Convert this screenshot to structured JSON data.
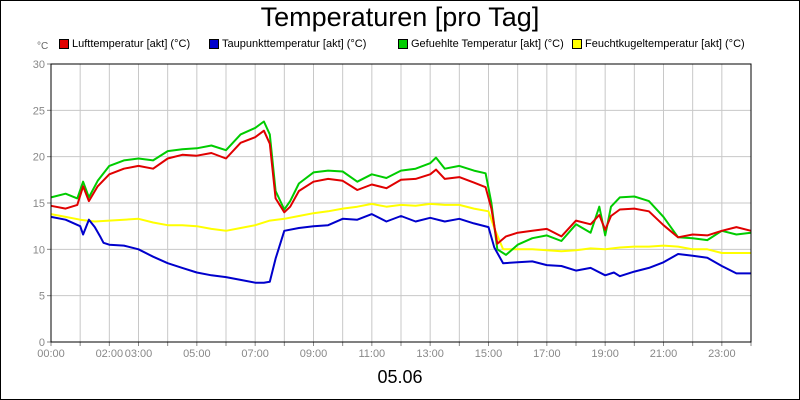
{
  "chart_data": {
    "type": "line",
    "title": "Temperaturen [pro Tag]",
    "unit_label": "°C",
    "date_label": "05.06",
    "ylim": [
      0,
      30
    ],
    "yticks": [
      0,
      5,
      10,
      15,
      20,
      25,
      30
    ],
    "xlim": [
      0,
      24
    ],
    "xticks": [
      {
        "x": 0,
        "label": "00:00"
      },
      {
        "x": 2,
        "label": "02:00"
      },
      {
        "x": 3,
        "label": "03:00"
      },
      {
        "x": 5,
        "label": "05:00"
      },
      {
        "x": 7,
        "label": "07:00"
      },
      {
        "x": 9,
        "label": "09:00"
      },
      {
        "x": 11,
        "label": "11:00"
      },
      {
        "x": 13,
        "label": "13:00"
      },
      {
        "x": 15,
        "label": "15:00"
      },
      {
        "x": 17,
        "label": "17:00"
      },
      {
        "x": 19,
        "label": "19:00"
      },
      {
        "x": 21,
        "label": "21:00"
      },
      {
        "x": 23,
        "label": "23:00"
      }
    ],
    "grid": true,
    "legend_position": "top",
    "series": [
      {
        "name": "Lufttemperatur [akt] (°C)",
        "color": "#e00000",
        "points": [
          [
            0,
            14.7
          ],
          [
            0.5,
            14.4
          ],
          [
            0.9,
            14.8
          ],
          [
            1.1,
            16.8
          ],
          [
            1.3,
            15.2
          ],
          [
            1.6,
            16.8
          ],
          [
            2,
            18.1
          ],
          [
            2.5,
            18.7
          ],
          [
            3,
            19.0
          ],
          [
            3.5,
            18.7
          ],
          [
            4,
            19.8
          ],
          [
            4.5,
            20.2
          ],
          [
            5,
            20.1
          ],
          [
            5.5,
            20.4
          ],
          [
            6,
            19.8
          ],
          [
            6.5,
            21.5
          ],
          [
            7,
            22.1
          ],
          [
            7.3,
            22.8
          ],
          [
            7.5,
            21.4
          ],
          [
            7.7,
            15.5
          ],
          [
            8,
            14.0
          ],
          [
            8.2,
            14.6
          ],
          [
            8.5,
            16.3
          ],
          [
            9,
            17.3
          ],
          [
            9.5,
            17.6
          ],
          [
            10,
            17.4
          ],
          [
            10.5,
            16.4
          ],
          [
            11,
            17.0
          ],
          [
            11.5,
            16.6
          ],
          [
            12,
            17.5
          ],
          [
            12.5,
            17.6
          ],
          [
            13,
            18.1
          ],
          [
            13.2,
            18.6
          ],
          [
            13.5,
            17.6
          ],
          [
            14,
            17.8
          ],
          [
            14.5,
            17.2
          ],
          [
            14.9,
            16.7
          ],
          [
            15.1,
            14.4
          ],
          [
            15.3,
            10.6
          ],
          [
            15.6,
            11.4
          ],
          [
            16,
            11.8
          ],
          [
            16.5,
            12.0
          ],
          [
            17,
            12.2
          ],
          [
            17.5,
            11.4
          ],
          [
            18,
            13.1
          ],
          [
            18.5,
            12.7
          ],
          [
            18.8,
            13.7
          ],
          [
            19,
            12.1
          ],
          [
            19.2,
            13.6
          ],
          [
            19.5,
            14.3
          ],
          [
            20,
            14.4
          ],
          [
            20.5,
            14.1
          ],
          [
            21,
            12.6
          ],
          [
            21.5,
            11.3
          ],
          [
            22,
            11.6
          ],
          [
            22.5,
            11.5
          ],
          [
            23,
            12.0
          ],
          [
            23.5,
            12.4
          ],
          [
            24,
            12.0
          ]
        ]
      },
      {
        "name": "Taupunkttemperatur [akt] (°C)",
        "color": "#0000cc",
        "points": [
          [
            0,
            13.5
          ],
          [
            0.5,
            13.2
          ],
          [
            1,
            12.5
          ],
          [
            1.1,
            11.6
          ],
          [
            1.3,
            13.2
          ],
          [
            1.5,
            12.4
          ],
          [
            1.7,
            11.3
          ],
          [
            1.8,
            10.7
          ],
          [
            2,
            10.5
          ],
          [
            2.5,
            10.4
          ],
          [
            3,
            10.0
          ],
          [
            3.5,
            9.2
          ],
          [
            4,
            8.5
          ],
          [
            4.5,
            8.0
          ],
          [
            5,
            7.5
          ],
          [
            5.5,
            7.2
          ],
          [
            6,
            7.0
          ],
          [
            6.5,
            6.7
          ],
          [
            7,
            6.4
          ],
          [
            7.3,
            6.4
          ],
          [
            7.5,
            6.5
          ],
          [
            7.7,
            9.0
          ],
          [
            8,
            12.0
          ],
          [
            8.5,
            12.3
          ],
          [
            9,
            12.5
          ],
          [
            9.5,
            12.6
          ],
          [
            10,
            13.3
          ],
          [
            10.5,
            13.2
          ],
          [
            11,
            13.8
          ],
          [
            11.5,
            13.0
          ],
          [
            12,
            13.6
          ],
          [
            12.5,
            13.0
          ],
          [
            13,
            13.4
          ],
          [
            13.5,
            13.0
          ],
          [
            14,
            13.3
          ],
          [
            14.5,
            12.8
          ],
          [
            15,
            12.4
          ],
          [
            15.2,
            10.2
          ],
          [
            15.5,
            8.5
          ],
          [
            16,
            8.6
          ],
          [
            16.5,
            8.7
          ],
          [
            17,
            8.3
          ],
          [
            17.5,
            8.2
          ],
          [
            18,
            7.7
          ],
          [
            18.5,
            8.0
          ],
          [
            19,
            7.2
          ],
          [
            19.3,
            7.5
          ],
          [
            19.5,
            7.1
          ],
          [
            20,
            7.6
          ],
          [
            20.5,
            8.0
          ],
          [
            21,
            8.6
          ],
          [
            21.5,
            9.5
          ],
          [
            22,
            9.3
          ],
          [
            22.5,
            9.1
          ],
          [
            23,
            8.2
          ],
          [
            23.5,
            7.4
          ],
          [
            24,
            7.4
          ]
        ]
      },
      {
        "name": "Gefuehlte Temperatur [akt] (°C)",
        "color": "#00cc00",
        "points": [
          [
            0,
            15.6
          ],
          [
            0.5,
            16.0
          ],
          [
            0.9,
            15.5
          ],
          [
            1.1,
            17.3
          ],
          [
            1.3,
            15.6
          ],
          [
            1.6,
            17.4
          ],
          [
            2,
            19.0
          ],
          [
            2.5,
            19.6
          ],
          [
            3,
            19.8
          ],
          [
            3.5,
            19.6
          ],
          [
            4,
            20.6
          ],
          [
            4.5,
            20.8
          ],
          [
            5,
            20.9
          ],
          [
            5.5,
            21.2
          ],
          [
            6,
            20.7
          ],
          [
            6.5,
            22.4
          ],
          [
            7,
            23.1
          ],
          [
            7.3,
            23.8
          ],
          [
            7.5,
            22.4
          ],
          [
            7.7,
            16.3
          ],
          [
            8,
            14.3
          ],
          [
            8.2,
            15.2
          ],
          [
            8.5,
            17.1
          ],
          [
            9,
            18.3
          ],
          [
            9.5,
            18.5
          ],
          [
            10,
            18.4
          ],
          [
            10.5,
            17.3
          ],
          [
            11,
            18.1
          ],
          [
            11.5,
            17.7
          ],
          [
            12,
            18.5
          ],
          [
            12.5,
            18.7
          ],
          [
            13,
            19.3
          ],
          [
            13.2,
            19.9
          ],
          [
            13.5,
            18.7
          ],
          [
            14,
            19.0
          ],
          [
            14.5,
            18.5
          ],
          [
            14.9,
            18.2
          ],
          [
            15.1,
            15.0
          ],
          [
            15.3,
            10.0
          ],
          [
            15.6,
            9.4
          ],
          [
            16,
            10.5
          ],
          [
            16.5,
            11.2
          ],
          [
            17,
            11.5
          ],
          [
            17.5,
            10.9
          ],
          [
            18,
            12.7
          ],
          [
            18.5,
            11.8
          ],
          [
            18.8,
            14.6
          ],
          [
            19,
            11.5
          ],
          [
            19.2,
            14.6
          ],
          [
            19.5,
            15.6
          ],
          [
            20,
            15.7
          ],
          [
            20.5,
            15.2
          ],
          [
            21,
            13.5
          ],
          [
            21.5,
            11.3
          ],
          [
            22,
            11.2
          ],
          [
            22.5,
            11.0
          ],
          [
            23,
            12.0
          ],
          [
            23.5,
            11.6
          ],
          [
            24,
            11.8
          ]
        ]
      },
      {
        "name": "Feuchtkugeltemperatur [akt] (°C)",
        "color": "#ffff00",
        "points": [
          [
            0,
            13.8
          ],
          [
            0.5,
            13.5
          ],
          [
            1,
            13.2
          ],
          [
            1.5,
            13.0
          ],
          [
            2,
            13.1
          ],
          [
            2.5,
            13.2
          ],
          [
            3,
            13.3
          ],
          [
            3.5,
            12.9
          ],
          [
            4,
            12.6
          ],
          [
            4.5,
            12.6
          ],
          [
            5,
            12.5
          ],
          [
            5.5,
            12.2
          ],
          [
            6,
            12.0
          ],
          [
            6.5,
            12.3
          ],
          [
            7,
            12.6
          ],
          [
            7.5,
            13.1
          ],
          [
            8,
            13.3
          ],
          [
            8.5,
            13.6
          ],
          [
            9,
            13.9
          ],
          [
            9.5,
            14.1
          ],
          [
            10,
            14.4
          ],
          [
            10.5,
            14.6
          ],
          [
            11,
            14.9
          ],
          [
            11.5,
            14.6
          ],
          [
            12,
            14.8
          ],
          [
            12.5,
            14.7
          ],
          [
            13,
            14.9
          ],
          [
            13.5,
            14.8
          ],
          [
            14,
            14.8
          ],
          [
            14.5,
            14.4
          ],
          [
            15,
            14.1
          ],
          [
            15.2,
            12.3
          ],
          [
            15.5,
            10.0
          ],
          [
            16,
            10.0
          ],
          [
            16.5,
            10.0
          ],
          [
            17,
            9.9
          ],
          [
            17.5,
            9.8
          ],
          [
            18,
            9.9
          ],
          [
            18.5,
            10.1
          ],
          [
            19,
            10.0
          ],
          [
            19.5,
            10.2
          ],
          [
            20,
            10.3
          ],
          [
            20.5,
            10.3
          ],
          [
            21,
            10.4
          ],
          [
            21.5,
            10.3
          ],
          [
            22,
            10.0
          ],
          [
            22.5,
            10.0
          ],
          [
            23,
            9.6
          ],
          [
            23.5,
            9.6
          ],
          [
            24,
            9.6
          ]
        ]
      }
    ]
  }
}
